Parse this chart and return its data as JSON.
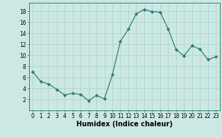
{
  "x": [
    0,
    1,
    2,
    3,
    4,
    5,
    6,
    7,
    8,
    9,
    10,
    11,
    12,
    13,
    14,
    15,
    16,
    17,
    18,
    19,
    20,
    21,
    22,
    23
  ],
  "y": [
    7,
    5.2,
    4.8,
    3.8,
    2.8,
    3.1,
    2.9,
    1.8,
    2.7,
    2.1,
    6.5,
    12.5,
    14.7,
    17.5,
    18.3,
    17.9,
    17.8,
    14.8,
    11.0,
    9.9,
    11.7,
    11.1,
    9.2,
    9.7
  ],
  "xlabel": "Humidex (Indice chaleur)",
  "xlim": [
    -0.5,
    23.5
  ],
  "ylim": [
    0,
    19.5
  ],
  "yticks": [
    2,
    4,
    6,
    8,
    10,
    12,
    14,
    16,
    18
  ],
  "xticks": [
    0,
    1,
    2,
    3,
    4,
    5,
    6,
    7,
    8,
    9,
    10,
    11,
    12,
    13,
    14,
    15,
    16,
    17,
    18,
    19,
    20,
    21,
    22,
    23
  ],
  "line_color": "#2e7d6e",
  "marker": "D",
  "marker_size": 2.2,
  "bg_color": "#cce8e4",
  "grid_color": "#aacfcb",
  "tick_fontsize": 5.5,
  "xlabel_fontsize": 7.0,
  "xlabel_fontweight": "bold"
}
